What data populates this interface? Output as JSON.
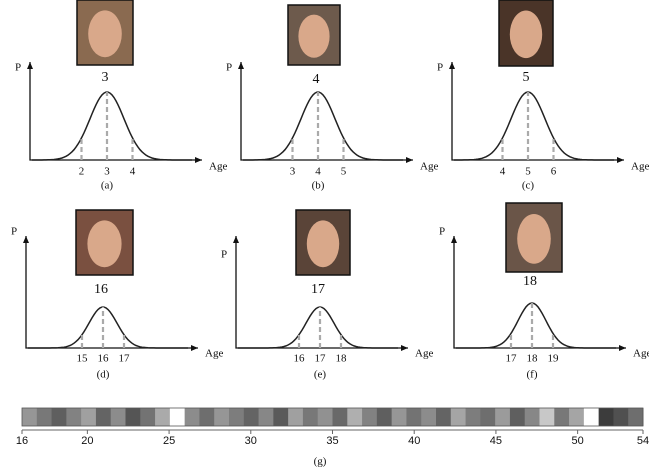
{
  "panels": [
    {
      "y_label": "P",
      "x_label": "Age",
      "peak": "3",
      "ticks": [
        "2",
        "3",
        "4"
      ],
      "caption": "(a)"
    },
    {
      "y_label": "P",
      "x_label": "Age",
      "peak": "4",
      "ticks": [
        "3",
        "4",
        "5"
      ],
      "caption": "(b)"
    },
    {
      "y_label": "P",
      "x_label": "Age",
      "peak": "5",
      "ticks": [
        "4",
        "5",
        "6"
      ],
      "caption": "(c)"
    },
    {
      "y_label": "P",
      "x_label": "Age",
      "peak": "16",
      "ticks": [
        "15",
        "16",
        "17"
      ],
      "caption": "(d)"
    },
    {
      "y_label": "P",
      "x_label": "Age",
      "peak": "17",
      "ticks": [
        "16",
        "17",
        "18"
      ],
      "caption": "(e)"
    },
    {
      "y_label": "P",
      "x_label": "Age",
      "peak": "18",
      "ticks": [
        "17",
        "18",
        "19"
      ],
      "caption": "(f)"
    }
  ],
  "strip": {
    "xlim": [
      16,
      54
    ],
    "xticks": [
      16,
      20,
      25,
      30,
      35,
      40,
      45,
      50,
      54
    ],
    "caption": "(g)"
  }
}
